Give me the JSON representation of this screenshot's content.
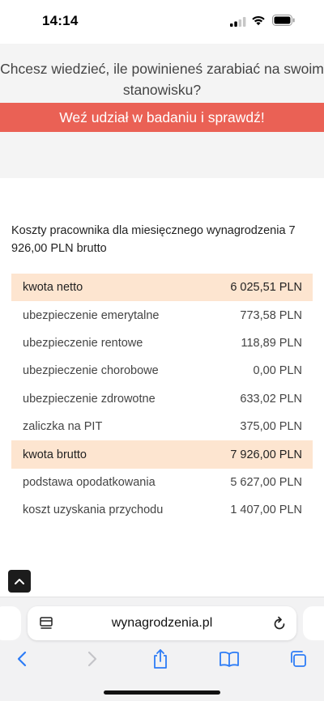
{
  "status_bar": {
    "time": "14:14"
  },
  "promo": {
    "question": "Chcesz wiedzieć, ile powinieneś zarabiać na swoim stanowisku?",
    "cta_label": "Weź udział w badaniu i sprawdź!"
  },
  "costs": {
    "title": "Koszty pracownika dla miesięcznego wynagrodzenia 7 926,00 PLN brutto",
    "rows": [
      {
        "label": "kwota netto",
        "value": "6 025,51 PLN"
      },
      {
        "label": "ubezpieczenie emerytalne",
        "value": "773,58 PLN"
      },
      {
        "label": "ubezpieczenie rentowe",
        "value": "118,89 PLN"
      },
      {
        "label": "ubezpieczenie chorobowe",
        "value": "0,00 PLN"
      },
      {
        "label": "ubezpieczenie zdrowotne",
        "value": "633,02 PLN"
      },
      {
        "label": "zaliczka na PIT",
        "value": "375,00 PLN"
      },
      {
        "label": "kwota brutto",
        "value": "7 926,00 PLN"
      },
      {
        "label": "podstawa opodatkowania",
        "value": "5 627,00 PLN"
      },
      {
        "label": "koszt uzyskania przychodu",
        "value": "1 407,00 PLN"
      }
    ]
  },
  "browser": {
    "url": "wynagrodzenia.pl",
    "icons": [
      "reader-icon",
      "reload-icon",
      "back-icon",
      "forward-icon",
      "share-icon",
      "bookmarks-icon",
      "tabs-icon"
    ]
  },
  "colors": {
    "cta_background": "#ea6155",
    "highlight_row": "#fde5d0",
    "promo_background": "#f4f4f4",
    "ios_blue": "#2d7cf6"
  }
}
